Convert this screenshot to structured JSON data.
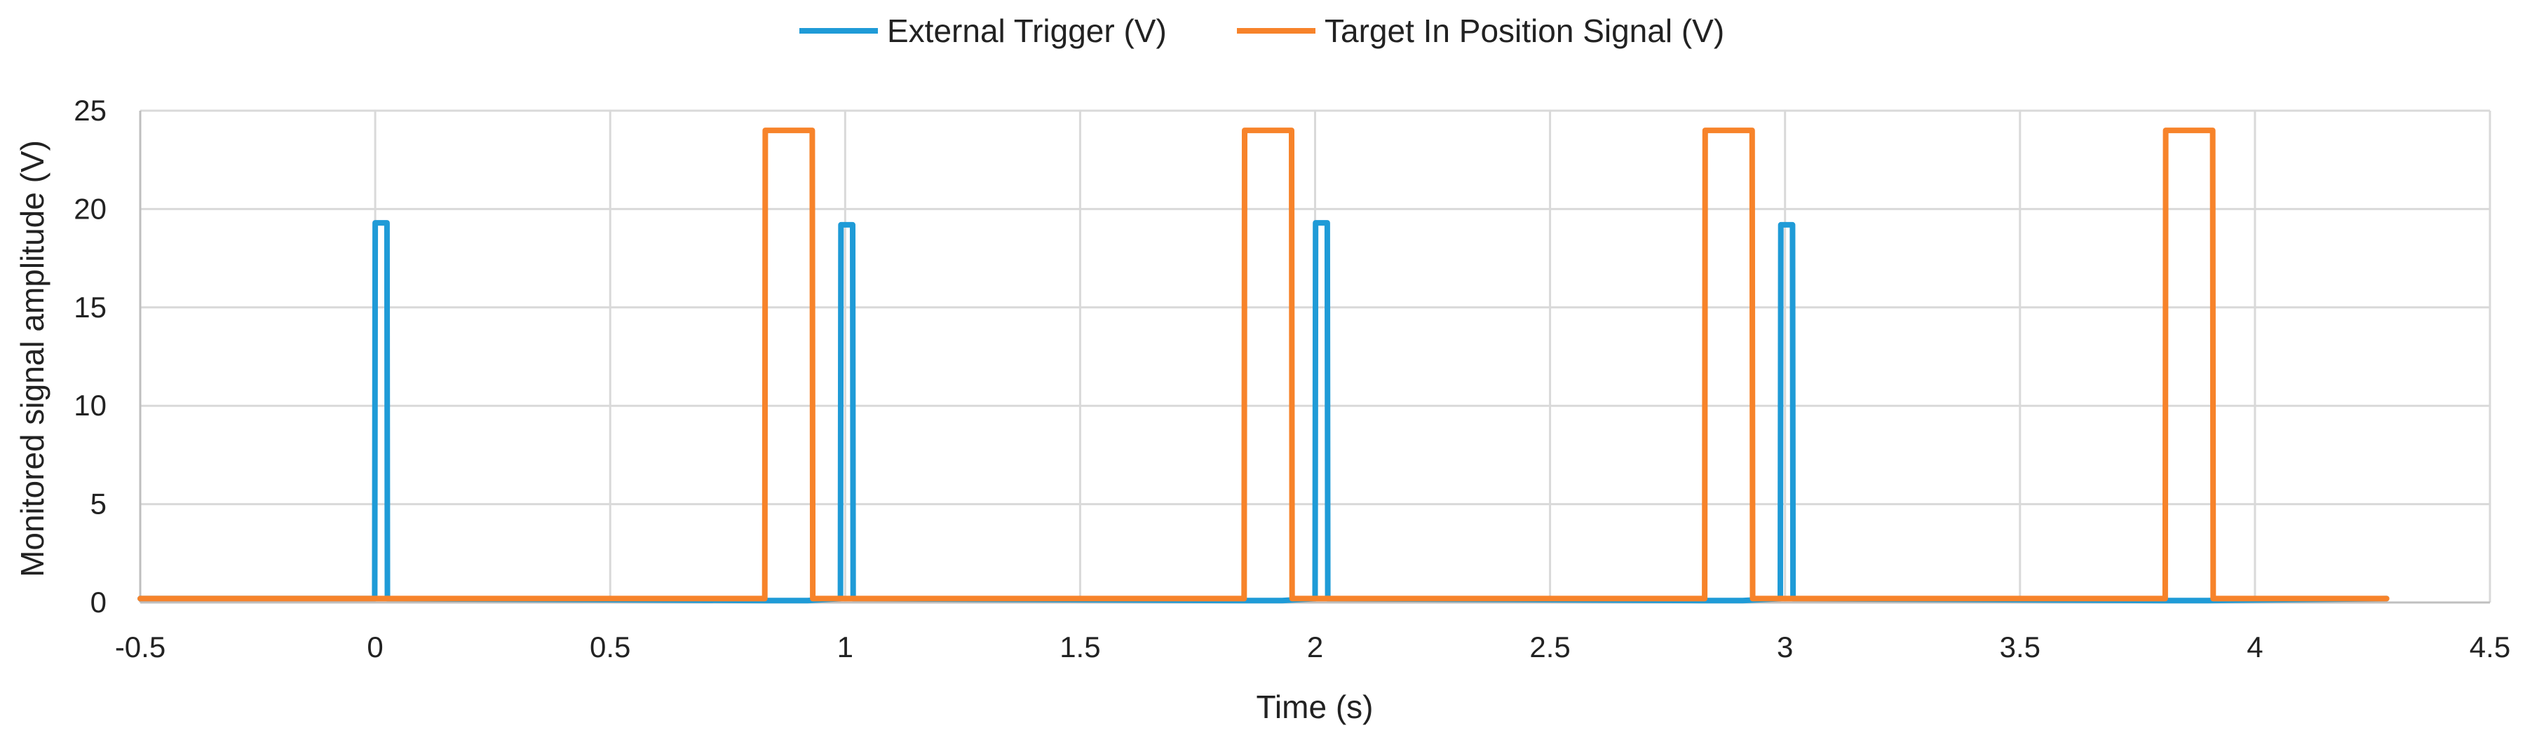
{
  "chart_data": {
    "type": "line",
    "title": "",
    "xlabel": "Time (s)",
    "ylabel": "Monitored signal amplitude (V)",
    "xlim": [
      -0.5,
      4.5
    ],
    "ylim": [
      0,
      25
    ],
    "x_ticks": [
      -0.5,
      0,
      0.5,
      1,
      1.5,
      2,
      2.5,
      3,
      3.5,
      4,
      4.5
    ],
    "x_tick_labels": [
      "-0.5",
      "0",
      "0.5",
      "1",
      "1.5",
      "2",
      "2.5",
      "3",
      "3.5",
      "4",
      "4.5"
    ],
    "y_ticks": [
      0,
      5,
      10,
      15,
      20,
      25
    ],
    "y_tick_labels": [
      "0",
      "5",
      "10",
      "15",
      "20",
      "25"
    ],
    "grid": true,
    "legend_position": "top-center",
    "series": [
      {
        "name": "External Trigger (V)",
        "color": "#1f9bd7",
        "x": [
          -0.5,
          -0.001,
          0.0,
          0.025,
          0.026,
          0.83,
          0.92,
          0.99,
          0.991,
          1.016,
          1.017,
          1.84,
          1.93,
          2.0,
          2.001,
          2.026,
          2.027,
          2.82,
          2.91,
          2.99,
          2.991,
          3.016,
          3.017,
          3.8,
          3.9,
          4.28
        ],
        "y": [
          0.2,
          0.2,
          19.3,
          19.3,
          0.2,
          0.1,
          0.1,
          0.2,
          19.2,
          19.2,
          0.2,
          0.1,
          0.1,
          0.2,
          19.3,
          19.3,
          0.2,
          0.1,
          0.1,
          0.2,
          19.2,
          19.2,
          0.2,
          0.1,
          0.1,
          0.2
        ]
      },
      {
        "name": "Target In Position Signal (V)",
        "color": "#f7832a",
        "x": [
          -0.5,
          0.829,
          0.83,
          0.93,
          0.931,
          1.849,
          1.85,
          1.95,
          1.951,
          2.829,
          2.83,
          2.93,
          2.931,
          3.809,
          3.81,
          3.91,
          3.911,
          4.28
        ],
        "y": [
          0.2,
          0.2,
          24.0,
          24.0,
          0.2,
          0.2,
          24.0,
          24.0,
          0.2,
          0.2,
          24.0,
          24.0,
          0.2,
          0.2,
          24.0,
          24.0,
          0.2,
          0.2
        ]
      }
    ]
  }
}
